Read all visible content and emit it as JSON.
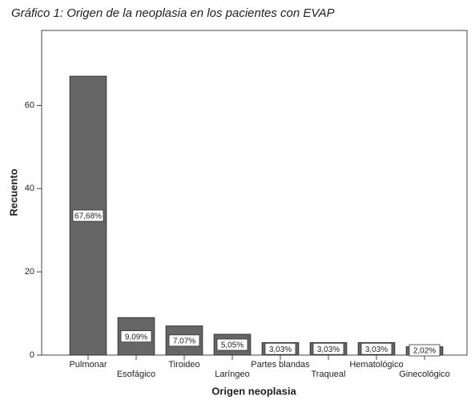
{
  "chart_data": {
    "type": "bar",
    "title": "Gráfico 1: Origen de la neoplasia en los pacientes con EVAP",
    "x_label": "Origen neoplasia",
    "y_label": "Recuento",
    "categories": [
      "Pulmonar",
      "Esofágico",
      "Tiroideo",
      "Laríngeo",
      "Partes blandas",
      "Traqueal",
      "Hematológico",
      "Ginecológico"
    ],
    "values": [
      67,
      9,
      7,
      5,
      3,
      3,
      3,
      2
    ],
    "value_labels": [
      "67,68%",
      "9,09%",
      "7,07%",
      "5,05%",
      "3,03%",
      "3,03%",
      "3,03%",
      "2,02%"
    ],
    "color": "#666666",
    "ylim": [
      0,
      78
    ],
    "yticks": [
      0,
      20,
      40,
      60
    ]
  }
}
